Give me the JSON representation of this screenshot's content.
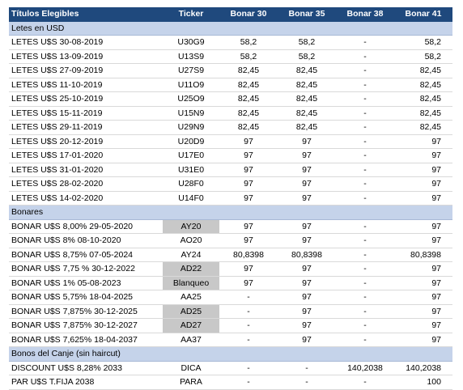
{
  "header": {
    "titulos": "Títulos Elegibles",
    "ticker": "Ticker",
    "bonar30": "Bonar 30",
    "bonar35": "Bonar 35",
    "bonar38": "Bonar 38",
    "bonar41": "Bonar 41"
  },
  "sections": [
    {
      "title": "Letes en USD",
      "rows": [
        {
          "name": "LETES U$S 30-08-2019",
          "ticker": "U30G9",
          "b30": "58,2",
          "b35": "58,2",
          "b38": "-",
          "b41": "58,2",
          "hl": false
        },
        {
          "name": "LETES U$S 13-09-2019",
          "ticker": "U13S9",
          "b30": "58,2",
          "b35": "58,2",
          "b38": "-",
          "b41": "58,2",
          "hl": false
        },
        {
          "name": "LETES U$S 27-09-2019",
          "ticker": "U27S9",
          "b30": "82,45",
          "b35": "82,45",
          "b38": "-",
          "b41": "82,45",
          "hl": false
        },
        {
          "name": "LETES U$S 11-10-2019",
          "ticker": "U11O9",
          "b30": "82,45",
          "b35": "82,45",
          "b38": "-",
          "b41": "82,45",
          "hl": false
        },
        {
          "name": "LETES U$S 25-10-2019",
          "ticker": "U25O9",
          "b30": "82,45",
          "b35": "82,45",
          "b38": "-",
          "b41": "82,45",
          "hl": false
        },
        {
          "name": "LETES U$S 15-11-2019",
          "ticker": "U15N9",
          "b30": "82,45",
          "b35": "82,45",
          "b38": "-",
          "b41": "82,45",
          "hl": false
        },
        {
          "name": "LETES U$S 29-11-2019",
          "ticker": "U29N9",
          "b30": "82,45",
          "b35": "82,45",
          "b38": "-",
          "b41": "82,45",
          "hl": false
        },
        {
          "name": "LETES U$S 20-12-2019",
          "ticker": "U20D9",
          "b30": "97",
          "b35": "97",
          "b38": "-",
          "b41": "97",
          "hl": false
        },
        {
          "name": "LETES U$S 17-01-2020",
          "ticker": "U17E0",
          "b30": "97",
          "b35": "97",
          "b38": "-",
          "b41": "97",
          "hl": false
        },
        {
          "name": "LETES U$S 31-01-2020",
          "ticker": "U31E0",
          "b30": "97",
          "b35": "97",
          "b38": "-",
          "b41": "97",
          "hl": false
        },
        {
          "name": "LETES U$S 28-02-2020",
          "ticker": "U28F0",
          "b30": "97",
          "b35": "97",
          "b38": "-",
          "b41": "97",
          "hl": false
        },
        {
          "name": "LETES U$S 14-02-2020",
          "ticker": "U14F0",
          "b30": "97",
          "b35": "97",
          "b38": "-",
          "b41": "97",
          "hl": false
        }
      ]
    },
    {
      "title": "Bonares",
      "rows": [
        {
          "name": "BONAR U$S 8,00% 29-05-2020",
          "ticker": "AY20",
          "b30": "97",
          "b35": "97",
          "b38": "-",
          "b41": "97",
          "hl": true
        },
        {
          "name": "BONAR U$S 8% 08-10-2020",
          "ticker": "AO20",
          "b30": "97",
          "b35": "97",
          "b38": "-",
          "b41": "97",
          "hl": false
        },
        {
          "name": "BONAR U$S 8,75% 07-05-2024",
          "ticker": "AY24",
          "b30": "80,8398",
          "b35": "80,8398",
          "b38": "-",
          "b41": "80,8398",
          "hl": false
        },
        {
          "name": "BONAR U$S 7,75 % 30-12-2022",
          "ticker": "AD22",
          "b30": "97",
          "b35": "97",
          "b38": "-",
          "b41": "97",
          "hl": true
        },
        {
          "name": "BONAR U$S 1% 05-08-2023",
          "ticker": "Blanqueo",
          "b30": "97",
          "b35": "97",
          "b38": "-",
          "b41": "97",
          "hl": true
        },
        {
          "name": "BONAR U$S 5,75% 18-04-2025",
          "ticker": "AA25",
          "b30": "-",
          "b35": "97",
          "b38": "-",
          "b41": "97",
          "hl": false
        },
        {
          "name": "BONAR U$S 7,875% 30-12-2025",
          "ticker": "AD25",
          "b30": "-",
          "b35": "97",
          "b38": "-",
          "b41": "97",
          "hl": true
        },
        {
          "name": "BONAR U$S 7,875% 30-12-2027",
          "ticker": "AD27",
          "b30": "-",
          "b35": "97",
          "b38": "-",
          "b41": "97",
          "hl": true
        },
        {
          "name": "BONAR U$S 7,625% 18-04-2037",
          "ticker": "AA37",
          "b30": "-",
          "b35": "97",
          "b38": "-",
          "b41": "97",
          "hl": false
        }
      ]
    },
    {
      "title": "Bonos del Canje (sin haircut)",
      "rows": [
        {
          "name": "DISCOUNT U$S 8,28% 2033",
          "ticker": "DICA",
          "b30": "-",
          "b35": "-",
          "b38": "140,2038",
          "b41": "140,2038",
          "hl": false
        },
        {
          "name": "PAR U$S T.FIJA 2038",
          "ticker": "PARA",
          "b30": "-",
          "b35": "-",
          "b38": "-",
          "b41": "100",
          "hl": false
        }
      ]
    }
  ],
  "colors": {
    "header_bg": "#1f497d",
    "section_bg": "#c5d3ea",
    "ticker_highlight": "#c8c8c8"
  }
}
